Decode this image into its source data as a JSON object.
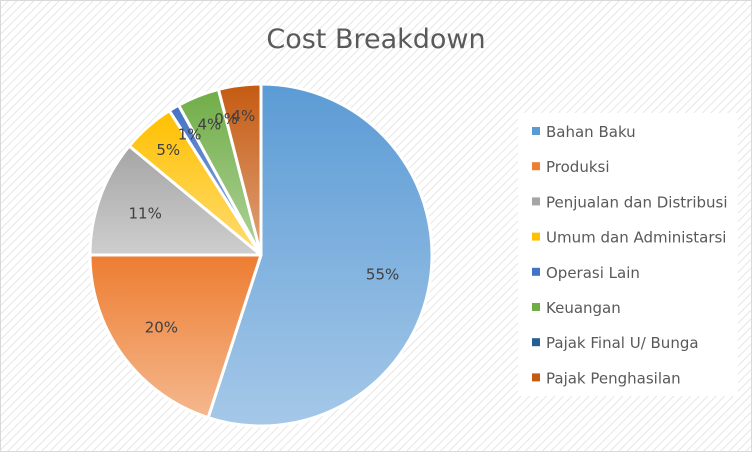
{
  "chart_data": {
    "type": "pie",
    "title": "Cost Breakdown",
    "legend_position": "right",
    "slices": [
      {
        "label": "Bahan Baku",
        "value": 55,
        "display": "55%",
        "color": "#5B9BD5"
      },
      {
        "label": "Produksi",
        "value": 20,
        "display": "20%",
        "color": "#ED7D31"
      },
      {
        "label": "Penjualan dan Distribusi",
        "value": 11,
        "display": "11%",
        "color": "#A5A5A5"
      },
      {
        "label": "Umum dan Administarsi",
        "value": 5,
        "display": "5%",
        "color": "#FFC000"
      },
      {
        "label": "Operasi Lain",
        "value": 1,
        "display": "1%",
        "color": "#4472C4"
      },
      {
        "label": "Keuangan",
        "value": 4,
        "display": "4%",
        "color": "#70AD47"
      },
      {
        "label": "Pajak Final U/ Bunga",
        "value": 0,
        "display": "0%",
        "color": "#255E91"
      },
      {
        "label": "Pajak Penghasilan",
        "value": 4,
        "display": "4%",
        "color": "#C55A11"
      }
    ]
  }
}
